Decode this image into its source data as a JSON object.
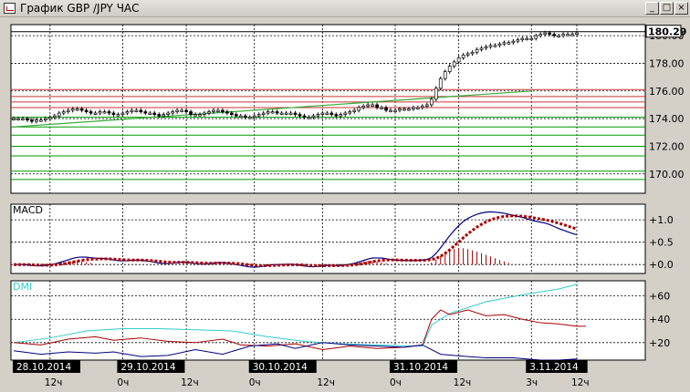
{
  "window": {
    "title": "График GBP /JPY ЧАС",
    "buttons": {
      "minimize": "_",
      "maximize": "□",
      "close": "×"
    }
  },
  "colors": {
    "background": "#ffffff",
    "grid": "#000000",
    "candle_bull": "#ffffff",
    "candle_bear": "#000000",
    "support_lines": "#009900",
    "resistance_lines": "#cc3333",
    "trend_line": "#33aa33",
    "macd_line": "#000080",
    "macd_signal": "#aa0000",
    "dmi_adx": "#33cccc",
    "dmi_plus": "#aa0000",
    "dmi_minus": "#000080",
    "date_label_bg": "#000000",
    "date_label_text": "#ffffff"
  },
  "chart_data": [
    {
      "type": "candlestick",
      "title": "",
      "ylim": [
        168.6,
        180.8
      ],
      "y_ticks": [
        "170.00",
        "172.00",
        "174.00",
        "176.00",
        "178.00",
        "180.00"
      ],
      "y_tick_values": [
        170,
        172,
        174,
        176,
        178,
        180
      ],
      "current_price_label": "180.29",
      "current_price": 180.29,
      "horizontal_lines": {
        "resistance": [
          176.1,
          175.6,
          175.2,
          174.8
        ],
        "support": [
          174.1,
          173.4,
          172.8,
          172.0,
          171.3,
          170.2,
          169.6
        ]
      },
      "trend_line": {
        "from": [
          0,
          173.4
        ],
        "to": [
          114,
          176.0
        ]
      },
      "close_series": [
        174.0,
        174.0,
        174.0,
        173.9,
        173.8,
        173.9,
        173.9,
        174.0,
        174.1,
        174.2,
        174.4,
        174.5,
        174.6,
        174.7,
        174.7,
        174.6,
        174.5,
        174.4,
        174.4,
        174.5,
        174.5,
        174.4,
        174.3,
        174.3,
        174.4,
        174.5,
        174.6,
        174.6,
        174.5,
        174.4,
        174.4,
        174.3,
        174.2,
        174.3,
        174.4,
        174.5,
        174.6,
        174.6,
        174.5,
        174.3,
        174.3,
        174.3,
        174.4,
        174.5,
        174.6,
        174.6,
        174.5,
        174.4,
        174.3,
        174.2,
        174.2,
        174.1,
        174.1,
        174.2,
        174.3,
        174.4,
        174.5,
        174.5,
        174.4,
        174.4,
        174.4,
        174.4,
        174.3,
        174.2,
        174.1,
        174.1,
        174.2,
        174.3,
        174.4,
        174.4,
        174.3,
        174.2,
        174.3,
        174.4,
        174.5,
        174.6,
        174.8,
        174.9,
        175.0,
        175.0,
        174.8,
        174.8,
        174.6,
        174.6,
        174.6,
        174.7,
        174.7,
        174.7,
        174.8,
        174.8,
        174.9,
        175.0,
        175.4,
        176.2,
        176.9,
        177.4,
        177.8,
        178.1,
        178.4,
        178.6,
        178.7,
        178.8,
        179.0,
        179.1,
        179.2,
        179.3,
        179.3,
        179.4,
        179.5,
        179.5,
        179.6,
        179.7,
        179.8,
        179.8,
        179.8,
        180.0,
        180.1,
        180.2,
        180.1,
        180.0,
        180.0,
        180.1,
        180.1,
        180.1,
        180.2
      ]
    },
    {
      "type": "line",
      "title": "MACD",
      "ylim": [
        -0.2,
        1.35
      ],
      "y_ticks": [
        "+1.0",
        "+0.5",
        "+0.0"
      ],
      "y_tick_values": [
        1.0,
        0.5,
        0.0
      ]
    },
    {
      "type": "line",
      "title": "DMI",
      "ylim": [
        5,
        73
      ],
      "y_ticks": [
        "+60",
        "+40",
        "+20"
      ],
      "y_tick_values": [
        60,
        40,
        20
      ],
      "adx": [
        [
          0,
          20
        ],
        [
          8,
          24
        ],
        [
          16,
          30
        ],
        [
          24,
          32
        ],
        [
          32,
          32
        ],
        [
          40,
          31
        ],
        [
          48,
          30
        ],
        [
          56,
          25
        ],
        [
          64,
          21
        ],
        [
          72,
          19
        ],
        [
          80,
          18
        ],
        [
          88,
          17
        ],
        [
          90,
          17
        ],
        [
          92,
          35
        ],
        [
          96,
          45
        ],
        [
          104,
          55
        ],
        [
          112,
          61
        ],
        [
          120,
          66
        ],
        [
          124,
          70
        ]
      ],
      "plus_di": [
        [
          0,
          20
        ],
        [
          6,
          18
        ],
        [
          12,
          23
        ],
        [
          18,
          25
        ],
        [
          22,
          22
        ],
        [
          28,
          24
        ],
        [
          34,
          21
        ],
        [
          40,
          20
        ],
        [
          46,
          23
        ],
        [
          50,
          18
        ],
        [
          56,
          17
        ],
        [
          62,
          19
        ],
        [
          68,
          14
        ],
        [
          74,
          17
        ],
        [
          80,
          15
        ],
        [
          86,
          16
        ],
        [
          90,
          18
        ],
        [
          92,
          40
        ],
        [
          94,
          48
        ],
        [
          96,
          44
        ],
        [
          100,
          48
        ],
        [
          104,
          43
        ],
        [
          108,
          44
        ],
        [
          112,
          40
        ],
        [
          116,
          37
        ],
        [
          120,
          36
        ],
        [
          124,
          34
        ],
        [
          126,
          34
        ]
      ],
      "minus_di": [
        [
          0,
          13
        ],
        [
          6,
          10
        ],
        [
          12,
          12
        ],
        [
          18,
          11
        ],
        [
          22,
          12
        ],
        [
          28,
          8
        ],
        [
          34,
          9
        ],
        [
          40,
          14
        ],
        [
          46,
          10
        ],
        [
          52,
          17
        ],
        [
          58,
          19
        ],
        [
          62,
          15
        ],
        [
          68,
          20
        ],
        [
          74,
          18
        ],
        [
          80,
          17
        ],
        [
          86,
          16
        ],
        [
          90,
          18
        ],
        [
          94,
          10
        ],
        [
          100,
          8
        ],
        [
          104,
          7
        ],
        [
          110,
          7
        ],
        [
          116,
          5
        ],
        [
          120,
          5
        ],
        [
          124,
          6
        ]
      ]
    }
  ],
  "time_axis": {
    "date_labels": [
      {
        "text": "28.10.2014",
        "index": 0
      },
      {
        "text": "29.10.2014",
        "index": 24
      },
      {
        "text": "30.10.2014",
        "index": 53
      },
      {
        "text": "31.10.2014",
        "index": 84
      },
      {
        "text": "3.11.2014",
        "index": 114
      }
    ],
    "hour_labels": [
      {
        "text": "12ч",
        "index": 8
      },
      {
        "text": "0ч",
        "index": 24
      },
      {
        "text": "12ч",
        "index": 38
      },
      {
        "text": "0ч",
        "index": 53
      },
      {
        "text": "12ч",
        "index": 68
      },
      {
        "text": "0ч",
        "index": 84
      },
      {
        "text": "12ч",
        "index": 98
      },
      {
        "text": "3ч",
        "index": 114
      },
      {
        "text": "12ч",
        "index": 124
      }
    ]
  }
}
